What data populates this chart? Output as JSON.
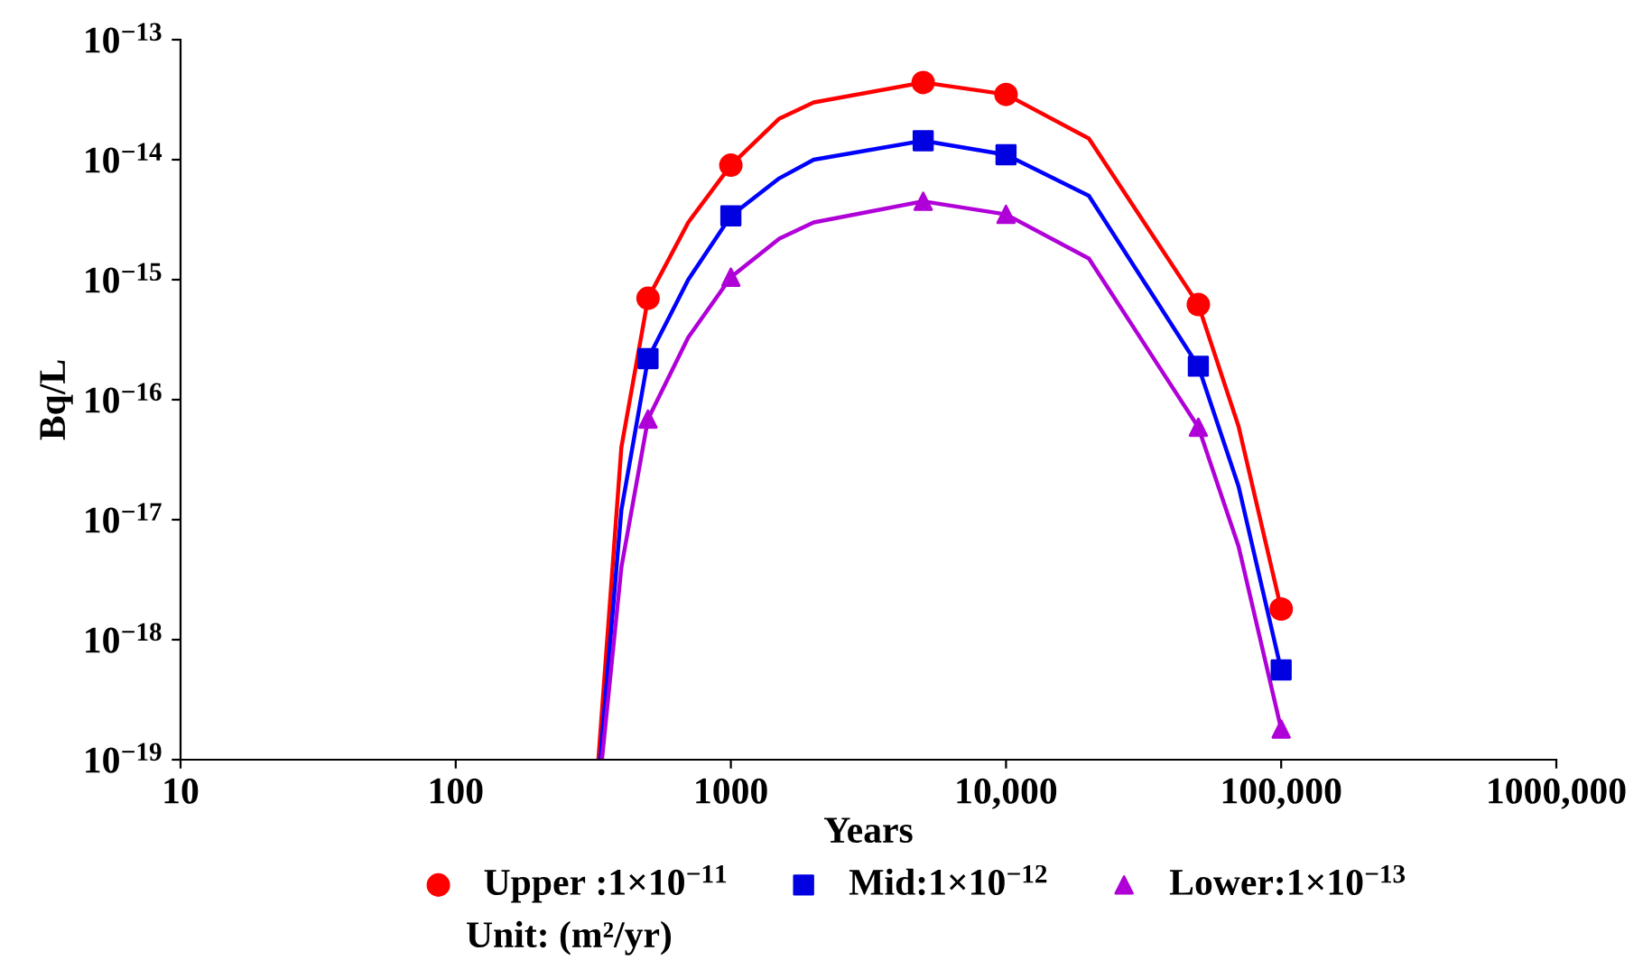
{
  "chart_data": {
    "type": "line",
    "xlabel": "Years",
    "ylabel": "Bq/L",
    "log": "xy",
    "grid": false,
    "legend": "bottom",
    "xlim": [
      10,
      1000000
    ],
    "xticks": [
      10,
      100,
      1000,
      {
        "value": 10000,
        "label": "10,000"
      },
      {
        "value": 100000,
        "label": "100,000"
      },
      {
        "value": 1000000,
        "label": "1000,000"
      }
    ],
    "ylim": [
      1e-19,
      1e-13
    ],
    "yticks": [
      {
        "value": 1e-19,
        "label": "10$^{−19}$"
      },
      {
        "value": 1e-18,
        "label": "10$^{−18}$"
      },
      {
        "value": 1e-17,
        "label": "10$^{−17}$"
      },
      {
        "value": 1e-16,
        "label": "10$^{−16}$"
      },
      {
        "value": 1e-15,
        "label": "10$^{−15}$"
      },
      {
        "value": 1e-14,
        "label": "10$^{−14}$"
      },
      {
        "value": 1e-13,
        "label": "10$^{−13}$"
      }
    ],
    "annotations": [
      "Unit: (m²/yr)"
    ],
    "series": [
      {
        "color": "#ff0000",
        "marker": "none",
        "x": [
          330,
          400,
          500,
          700,
          1000,
          1500,
          2000,
          5000,
          10000,
          20000,
          50000,
          70000,
          100000
        ],
        "values": [
          1e-19,
          4e-17,
          7e-16,
          3e-15,
          9e-15,
          2.2e-14,
          3e-14,
          4.4e-14,
          3.5e-14,
          1.5e-14,
          6.2e-16,
          6e-17,
          1.8e-18
        ]
      },
      {
        "color": "#0000ff",
        "marker": "none",
        "x": [
          335,
          400,
          500,
          700,
          1000,
          1500,
          2000,
          5000,
          10000,
          20000,
          50000,
          70000,
          100000
        ],
        "values": [
          1e-19,
          1.2e-17,
          2.2e-16,
          1e-15,
          3.4e-15,
          7e-15,
          1e-14,
          1.44e-14,
          1.1e-14,
          5e-15,
          1.9e-16,
          1.9e-17,
          5.6e-19
        ]
      },
      {
        "color": "#b000d8",
        "marker": "none",
        "x": [
          340,
          400,
          500,
          700,
          1000,
          1500,
          2000,
          5000,
          10000,
          20000,
          50000,
          70000,
          100000
        ],
        "values": [
          1e-19,
          4e-18,
          6.9e-17,
          3.3e-16,
          1.05e-15,
          2.2e-15,
          3e-15,
          4.5e-15,
          3.5e-15,
          1.5e-15,
          5.9e-17,
          6e-18,
          1.8e-19
        ]
      },
      {
        "type": "scatter",
        "name": "Upper :1×10$^{−11}$",
        "color": "#ff0000",
        "marker": "circle",
        "x": [
          500,
          1000,
          5000,
          10000,
          50000,
          100000
        ],
        "values": [
          7e-16,
          9e-15,
          4.4e-14,
          3.5e-14,
          6.2e-16,
          1.8e-18
        ]
      },
      {
        "type": "scatter",
        "name": "Mid:1×10$^{−12}$",
        "color": "#0000e0",
        "marker": "square",
        "x": [
          500,
          1000,
          5000,
          10000,
          50000,
          100000
        ],
        "values": [
          2.2e-16,
          3.4e-15,
          1.44e-14,
          1.1e-14,
          1.9e-16,
          5.6e-19
        ]
      },
      {
        "type": "scatter",
        "name": "Lower:1×10$^{−13}$",
        "color": "#b000d8",
        "marker": "triangle",
        "x": [
          500,
          1000,
          5000,
          10000,
          50000,
          100000
        ],
        "values": [
          6.9e-17,
          1.05e-15,
          4.5e-15,
          3.5e-15,
          5.9e-17,
          1.8e-19
        ]
      }
    ]
  }
}
